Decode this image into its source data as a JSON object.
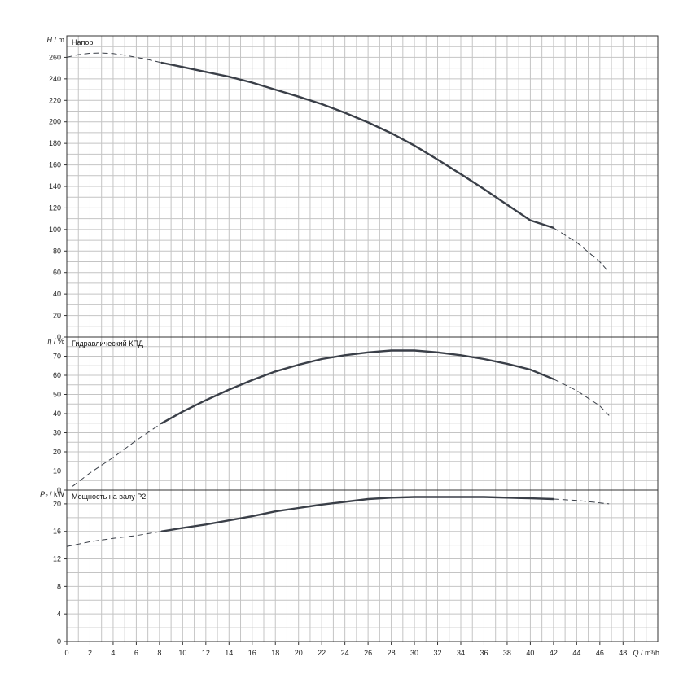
{
  "chart_data": {
    "type": "line",
    "x_axis": {
      "variable": "Q",
      "unit": "m³/h",
      "range": [
        0,
        51
      ],
      "tick_labels": [
        "0",
        "2",
        "4",
        "6",
        "8",
        "10",
        "12",
        "14",
        "16",
        "18",
        "20",
        "22",
        "24",
        "26",
        "28",
        "30",
        "32",
        "34",
        "36",
        "38",
        "40",
        "42",
        "44",
        "46",
        "48"
      ]
    },
    "panels": [
      {
        "title": "Напор",
        "y_variable": "H",
        "y_unit": "m",
        "ylim": [
          0,
          280
        ],
        "y_tick_labels": [
          "0",
          "20",
          "40",
          "60",
          "80",
          "100",
          "120",
          "140",
          "160",
          "180",
          "200",
          "220",
          "240",
          "260"
        ],
        "dashed_left": [
          [
            0,
            260
          ],
          [
            1,
            262.5
          ],
          [
            2,
            263.8
          ],
          [
            3,
            264
          ],
          [
            4,
            263.5
          ],
          [
            5,
            262
          ],
          [
            6,
            260
          ],
          [
            7,
            258
          ],
          [
            8.2,
            255
          ]
        ],
        "solid": [
          [
            8.2,
            255
          ],
          [
            10,
            251
          ],
          [
            12,
            246.5
          ],
          [
            14,
            242
          ],
          [
            16,
            236.5
          ],
          [
            18,
            230
          ],
          [
            20,
            223.5
          ],
          [
            22,
            216.5
          ],
          [
            24,
            208.5
          ],
          [
            26,
            199.5
          ],
          [
            28,
            189.5
          ],
          [
            30,
            178
          ],
          [
            32,
            165
          ],
          [
            34,
            151.5
          ],
          [
            36,
            137.5
          ],
          [
            38,
            123
          ],
          [
            40,
            108.5
          ],
          [
            42,
            101.5
          ]
        ],
        "dashed_right": [
          [
            42,
            101.5
          ],
          [
            44,
            88
          ],
          [
            46,
            70
          ],
          [
            46.8,
            60
          ]
        ]
      },
      {
        "title": "Гидравлический КПД",
        "y_variable": "η",
        "y_unit": "%",
        "ylim": [
          0,
          80
        ],
        "y_tick_labels": [
          "0",
          "10",
          "20",
          "30",
          "40",
          "50",
          "60",
          "70"
        ],
        "dashed_left": [
          [
            0.5,
            2
          ],
          [
            2,
            9
          ],
          [
            4,
            17
          ],
          [
            6,
            26
          ],
          [
            8.2,
            35
          ]
        ],
        "solid": [
          [
            8.2,
            35
          ],
          [
            10,
            41
          ],
          [
            12,
            47
          ],
          [
            14,
            52.5
          ],
          [
            16,
            57.5
          ],
          [
            18,
            62
          ],
          [
            20,
            65.5
          ],
          [
            22,
            68.5
          ],
          [
            24,
            70.5
          ],
          [
            26,
            72
          ],
          [
            28,
            73
          ],
          [
            30,
            73
          ],
          [
            32,
            72
          ],
          [
            34,
            70.5
          ],
          [
            36,
            68.5
          ],
          [
            38,
            66
          ],
          [
            40,
            63
          ],
          [
            42,
            58
          ]
        ],
        "dashed_right": [
          [
            42,
            58
          ],
          [
            44,
            52
          ],
          [
            46,
            44
          ],
          [
            46.8,
            39
          ]
        ]
      },
      {
        "title": "Мощность на валу P2",
        "y_variable": "P₂",
        "y_unit": "kW",
        "ylim": [
          0,
          22
        ],
        "y_tick_labels": [
          "0",
          "4",
          "8",
          "12",
          "16",
          "20"
        ],
        "dashed_left": [
          [
            0,
            13.8
          ],
          [
            2,
            14.5
          ],
          [
            4,
            15
          ],
          [
            6,
            15.4
          ],
          [
            8.2,
            16
          ]
        ],
        "solid": [
          [
            8.2,
            16
          ],
          [
            10,
            16.5
          ],
          [
            12,
            17
          ],
          [
            14,
            17.6
          ],
          [
            16,
            18.2
          ],
          [
            18,
            18.9
          ],
          [
            20,
            19.4
          ],
          [
            22,
            19.9
          ],
          [
            24,
            20.3
          ],
          [
            26,
            20.7
          ],
          [
            28,
            20.9
          ],
          [
            30,
            21
          ],
          [
            32,
            21
          ],
          [
            34,
            21
          ],
          [
            36,
            21
          ],
          [
            38,
            20.9
          ],
          [
            40,
            20.8
          ],
          [
            42,
            20.7
          ]
        ],
        "dashed_right": [
          [
            42,
            20.7
          ],
          [
            44,
            20.5
          ],
          [
            46.8,
            20
          ]
        ]
      }
    ]
  }
}
